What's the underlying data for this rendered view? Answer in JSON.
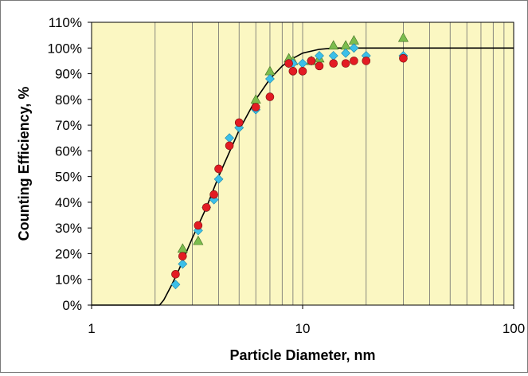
{
  "chart_data": {
    "type": "scatter",
    "title": "",
    "xlabel": "Particle Diameter, nm",
    "ylabel": "Counting Efficiency, %",
    "x_scale": "log",
    "xlim": [
      1,
      100
    ],
    "ylim": [
      0,
      110
    ],
    "x_tick_labels": [
      "1",
      "10",
      "100"
    ],
    "x_tick_values": [
      1,
      10,
      100
    ],
    "y_tick_values": [
      0,
      10,
      20,
      30,
      40,
      50,
      60,
      70,
      80,
      90,
      100,
      110
    ],
    "y_tick_labels": [
      "0%",
      "10%",
      "20%",
      "30%",
      "40%",
      "50%",
      "60%",
      "70%",
      "80%",
      "90%",
      "100%",
      "110%"
    ],
    "grid": "vertical log gridlines only",
    "legend": "none",
    "plot_background": "#fbf7c2",
    "series": [
      {
        "marker": "circle",
        "color": "#e31b23",
        "x": [
          2.5,
          2.7,
          3.2,
          3.5,
          3.8,
          4.0,
          4.5,
          5.0,
          6.0,
          7.0,
          8.6,
          9.0,
          10.0,
          11.0,
          12.0,
          14.0,
          16.0,
          17.5,
          20.0,
          30.0
        ],
        "y": [
          12,
          19,
          31,
          38,
          43,
          53,
          62,
          71,
          77,
          81,
          94,
          91,
          91,
          95,
          93,
          94,
          94,
          95,
          95,
          96
        ]
      },
      {
        "marker": "diamond",
        "color": "#3bbfe8",
        "x": [
          2.5,
          2.7,
          3.2,
          3.5,
          3.8,
          4.0,
          4.5,
          5.0,
          6.0,
          7.0,
          8.6,
          9.0,
          10.0,
          11.0,
          12.0,
          14.0,
          16.0,
          17.5,
          20.0,
          30.0
        ],
        "y": [
          8,
          16,
          29,
          38,
          41,
          49,
          65,
          69,
          76,
          88,
          94,
          94,
          94,
          95,
          97,
          97,
          98,
          100,
          97,
          97
        ]
      },
      {
        "marker": "triangle",
        "color": "#7cbd4e",
        "x": [
          2.7,
          3.2,
          6.0,
          7.0,
          8.6,
          9.0,
          11.0,
          12.0,
          14.0,
          16.0,
          17.5,
          30.0
        ],
        "y": [
          22,
          25,
          80,
          91,
          96,
          95,
          95,
          96,
          101,
          101,
          103,
          104
        ]
      }
    ],
    "fit_curve": {
      "color": "#000000",
      "x": [
        1,
        2.1,
        2.2,
        2.4,
        2.6,
        3.0,
        3.5,
        4.0,
        5.0,
        6.0,
        7.0,
        8.0,
        9.0,
        10.0,
        12.0,
        14.0,
        100
      ],
      "y": [
        0,
        0,
        2,
        8,
        14,
        26,
        38,
        50,
        68,
        80,
        88,
        93,
        96,
        98,
        99.5,
        100,
        100
      ]
    }
  }
}
